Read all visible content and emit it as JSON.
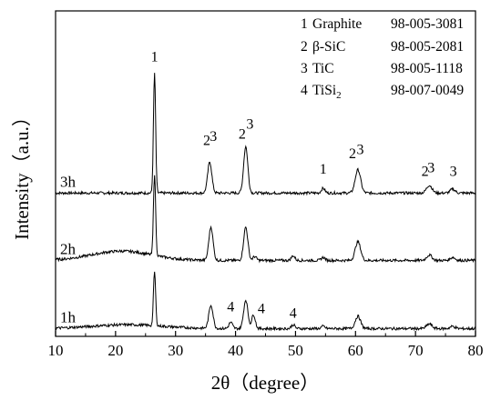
{
  "chart_data": {
    "type": "line",
    "xlabel": "2θ（degree）",
    "ylabel": "Intensity（a.u.）",
    "xlim": [
      10,
      80
    ],
    "xticks": [
      "10",
      "20",
      "30",
      "40",
      "50",
      "60",
      "70",
      "80"
    ],
    "y_ticks_shown": false,
    "grid": false,
    "legend": {
      "placement": "top-right",
      "entries": [
        {
          "index": "1",
          "phase": "Graphite",
          "code": "98-005-3081"
        },
        {
          "index": "2",
          "phase": "β-SiC",
          "code": "98-005-2081"
        },
        {
          "index": "3",
          "phase": "TiC",
          "code": "98-005-1118"
        },
        {
          "index": "4",
          "phase": "TiSi2",
          "code": "98-007-0049",
          "phase_base": "TiSi",
          "phase_sub": "2"
        }
      ]
    },
    "series": [
      {
        "name": "3h",
        "baseline": 1.85,
        "hump": {
          "center": 21,
          "width": 5,
          "height": 0.0
        },
        "peaks": [
          {
            "x": 26.5,
            "h": 1.55,
            "w": 0.18
          },
          {
            "x": 35.7,
            "h": 0.4,
            "w": 0.35
          },
          {
            "x": 41.7,
            "h": 0.6,
            "w": 0.35
          },
          {
            "x": 54.6,
            "h": 0.06,
            "w": 0.3
          },
          {
            "x": 60.4,
            "h": 0.3,
            "w": 0.45
          },
          {
            "x": 72.3,
            "h": 0.1,
            "w": 0.45
          },
          {
            "x": 76.2,
            "h": 0.05,
            "w": 0.4
          }
        ],
        "annotations": [
          {
            "text": "1",
            "x": 26.5,
            "y": 3.55
          },
          {
            "text": "2",
            "x": 35.2,
            "y": 2.47
          },
          {
            "text": "3",
            "x": 36.3,
            "y": 2.52
          },
          {
            "text": "2",
            "x": 41.1,
            "y": 2.55
          },
          {
            "text": "3",
            "x": 42.4,
            "y": 2.68
          },
          {
            "text": "1",
            "x": 54.6,
            "y": 2.1
          },
          {
            "text": "2",
            "x": 59.5,
            "y": 2.3
          },
          {
            "text": "3",
            "x": 60.8,
            "y": 2.35
          },
          {
            "text": "2",
            "x": 71.6,
            "y": 2.07
          },
          {
            "text": "3",
            "x": 72.6,
            "y": 2.12
          },
          {
            "text": "3",
            "x": 76.3,
            "y": 2.07
          }
        ]
      },
      {
        "name": "2h",
        "baseline": 0.98,
        "hump": {
          "center": 21,
          "width": 5,
          "height": 0.12
        },
        "peaks": [
          {
            "x": 26.5,
            "h": 1.05,
            "w": 0.18
          },
          {
            "x": 35.9,
            "h": 0.43,
            "w": 0.35
          },
          {
            "x": 41.7,
            "h": 0.43,
            "w": 0.35
          },
          {
            "x": 43.2,
            "h": 0.05,
            "w": 0.3
          },
          {
            "x": 49.6,
            "h": 0.06,
            "w": 0.3
          },
          {
            "x": 54.6,
            "h": 0.04,
            "w": 0.3
          },
          {
            "x": 60.4,
            "h": 0.24,
            "w": 0.45
          },
          {
            "x": 72.3,
            "h": 0.07,
            "w": 0.45
          },
          {
            "x": 76.2,
            "h": 0.04,
            "w": 0.4
          }
        ],
        "annotations": []
      },
      {
        "name": "1h",
        "baseline": 0.1,
        "hump": {
          "center": 22,
          "width": 6,
          "height": 0.05
        },
        "peaks": [
          {
            "x": 26.5,
            "h": 0.7,
            "w": 0.18
          },
          {
            "x": 35.9,
            "h": 0.3,
            "w": 0.35
          },
          {
            "x": 39.2,
            "h": 0.08,
            "w": 0.3
          },
          {
            "x": 41.7,
            "h": 0.37,
            "w": 0.35
          },
          {
            "x": 43.0,
            "h": 0.18,
            "w": 0.3
          },
          {
            "x": 49.6,
            "h": 0.05,
            "w": 0.3
          },
          {
            "x": 54.6,
            "h": 0.03,
            "w": 0.3
          },
          {
            "x": 60.4,
            "h": 0.16,
            "w": 0.45
          },
          {
            "x": 72.3,
            "h": 0.06,
            "w": 0.45
          },
          {
            "x": 76.2,
            "h": 0.03,
            "w": 0.4
          }
        ],
        "annotations": [
          {
            "text": "4",
            "x": 39.2,
            "y": 0.32
          },
          {
            "text": "4",
            "x": 44.3,
            "y": 0.3
          },
          {
            "text": "4",
            "x": 49.6,
            "y": 0.24
          }
        ]
      }
    ]
  }
}
